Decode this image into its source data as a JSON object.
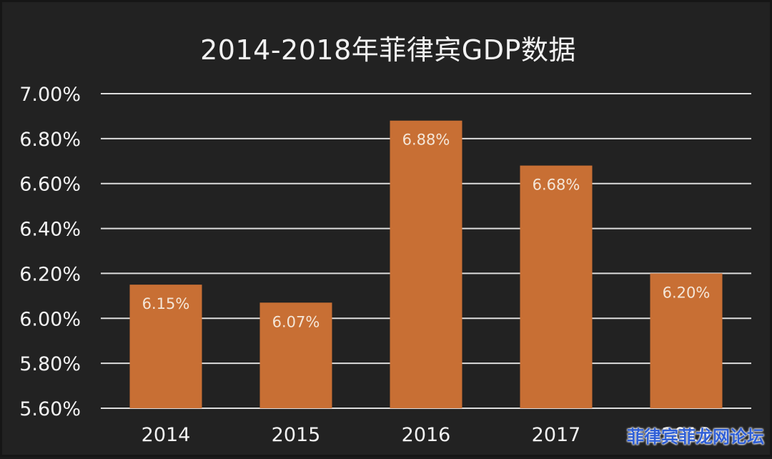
{
  "chart_data": {
    "type": "bar",
    "title": "2014-2018年菲律宾GDP数据",
    "categories": [
      "2014",
      "2015",
      "2016",
      "2017",
      "2018"
    ],
    "values": [
      6.15,
      6.07,
      6.88,
      6.68,
      6.2
    ],
    "data_labels": [
      "6.15%",
      "6.07%",
      "6.88%",
      "6.68%",
      "6.20%"
    ],
    "yticks": [
      "5.60%",
      "5.80%",
      "6.00%",
      "6.20%",
      "6.40%",
      "6.60%",
      "6.80%",
      "7.00%"
    ],
    "ytick_values": [
      5.6,
      5.8,
      6.0,
      6.2,
      6.4,
      6.6,
      6.8,
      7.0
    ],
    "ylim": [
      5.6,
      7.0
    ],
    "xlabel": "",
    "ylabel": "",
    "grid": true,
    "legend": "none",
    "colors": {
      "background": "#222222",
      "bar": "#c86f34",
      "grid": "#dddddd",
      "text": "#f2f2f2",
      "label": "#f4e6d8"
    }
  },
  "watermark": "菲律宾菲龙网论坛"
}
